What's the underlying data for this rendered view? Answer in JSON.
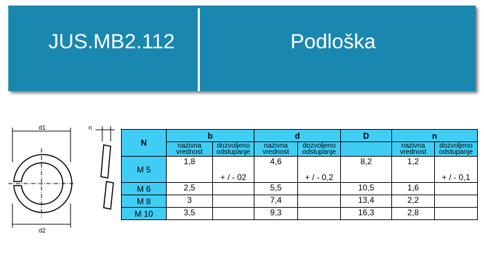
{
  "header": {
    "code": "JUS.MB2.112",
    "title": "Podloška"
  },
  "drawing": {
    "labels": [
      "d1",
      "d2",
      "n"
    ]
  },
  "table": {
    "groups": [
      "N",
      "b",
      "d",
      "D",
      "n"
    ],
    "subheaders": [
      "nazivna vrednost",
      "dozvoljeno odstupanje"
    ],
    "rows": [
      [
        "M 5",
        "1,8",
        "+ / - 02",
        "4,6",
        "+ / - 0,2",
        "8,2",
        "1,2",
        "+ / - 0,1"
      ],
      [
        "M 6",
        "2,5",
        null,
        "5,5",
        null,
        "10,5",
        "1,6",
        null
      ],
      [
        "M 8",
        "3",
        null,
        "7,4",
        null,
        "13,4",
        "2,2",
        null
      ],
      [
        "M 10",
        "3,5",
        null,
        "9,3",
        null,
        "16,3",
        "2,8",
        null
      ]
    ]
  }
}
